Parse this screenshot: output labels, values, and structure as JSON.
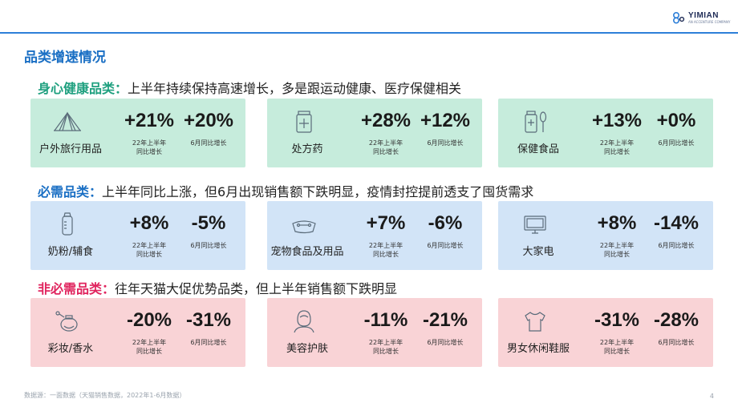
{
  "brand": {
    "name": "YIMIAN",
    "sub": "AN ACCENTURE COMPANY"
  },
  "page_title": "品类增速情况",
  "sections": [
    {
      "key": "身心健康品类：",
      "text": "上半年持续保持高速增长，多是跟运动健康、医疗保健相关",
      "color": "#1fa07f",
      "cards": [
        {
          "category": "户外旅行用品",
          "icon": "tent-icon",
          "v1": "+21%",
          "v2": "+20%",
          "l1a": "22年上半年",
          "l1b": "同比增长",
          "l2": "6月同比增长"
        },
        {
          "category": "处方药",
          "icon": "medicine-bottle-icon",
          "v1": "+28%",
          "v2": "+12%",
          "l1a": "22年上半年",
          "l1b": "同比增长",
          "l2": "6月同比增长"
        },
        {
          "category": "保健食品",
          "icon": "supplement-spoon-icon",
          "v1": "+13%",
          "v2": "+0%",
          "l1a": "22年上半年",
          "l1b": "同比增长",
          "l2": "6月同比增长"
        }
      ]
    },
    {
      "key": "必需品类：",
      "text": "上半年同比上涨，但6月出现销售额下跌明显，疫情封控提前透支了囤货需求",
      "color": "#1a6fc4",
      "cards": [
        {
          "category": "奶粉/辅食",
          "icon": "baby-bottle-icon",
          "v1": "+8%",
          "v2": "-5%",
          "l1a": "22年上半年",
          "l1b": "同比增长",
          "l2": "6月同比增长"
        },
        {
          "category": "宠物食品及用品",
          "icon": "pet-bowl-icon",
          "v1": "+7%",
          "v2": "-6%",
          "l1a": "22年上半年",
          "l1b": "同比增长",
          "l2": "6月同比增长"
        },
        {
          "category": "大家电",
          "icon": "tv-icon",
          "v1": "+8%",
          "v2": "-14%",
          "l1a": "22年上半年",
          "l1b": "同比增长",
          "l2": "6月同比增长"
        }
      ]
    },
    {
      "key": "非必需品类：",
      "text": "往年天猫大促优势品类，但上半年销售额下跌明显",
      "color": "#e0245e",
      "cards": [
        {
          "category": "彩妆/香水",
          "icon": "perfume-icon",
          "v1": "-20%",
          "v2": "-31%",
          "l1a": "22年上半年",
          "l1b": "同比增长",
          "l2": "6月同比增长"
        },
        {
          "category": "美容护肤",
          "icon": "face-care-icon",
          "v1": "-11%",
          "v2": "-21%",
          "l1a": "22年上半年",
          "l1b": "同比增长",
          "l2": "6月同比增长"
        },
        {
          "category": "男女休闲鞋服",
          "icon": "tshirt-icon",
          "v1": "-31%",
          "v2": "-28%",
          "l1a": "22年上半年",
          "l1b": "同比增长",
          "l2": "6月同比增长"
        }
      ]
    }
  ],
  "footer": {
    "source": "数据源：一面数据（天猫销售数据，2022年1-6月数据）",
    "page": "4"
  }
}
